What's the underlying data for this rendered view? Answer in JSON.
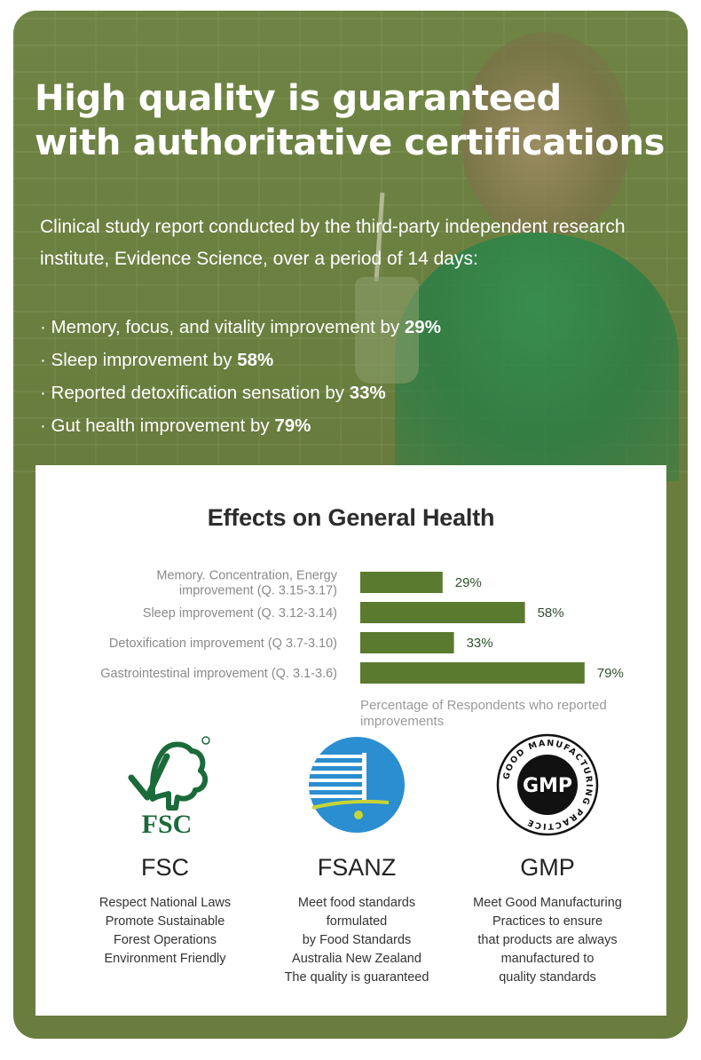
{
  "hero": {
    "title_line1": "High quality is guaranteed",
    "title_line2": "with authoritative certifications",
    "intro": "Clinical study report conducted by the third-party independent research institute, Evidence Science, over a period of 14 days:",
    "bullets": [
      {
        "text": "· Memory, focus, and vitality improvement by ",
        "value": "29%"
      },
      {
        "text": "· Sleep improvement by ",
        "value": "58%"
      },
      {
        "text": "· Reported detoxification sensation by ",
        "value": "33%"
      },
      {
        "text": "· Gut health improvement by ",
        "value": "79%"
      }
    ]
  },
  "chart_data": {
    "type": "bar",
    "orientation": "horizontal",
    "title": "Effects on General Health",
    "categories": [
      "Memory. Concentration, Energy improvement (Q. 3.15-3.17)",
      "Sleep improvement (Q. 3.12-3.14)",
      "Detoxification improvement (Q 3.7-3.10)",
      "Gastrointestinal improvement (Q. 3.1-3.6)"
    ],
    "category_lines": [
      [
        "Memory. Concentration, Energy",
        "improvement (Q. 3.15-3.17)"
      ],
      [
        "Sleep improvement (Q. 3.12-3.14)"
      ],
      [
        "Detoxification improvement (Q 3.7-3.10)"
      ],
      [
        "Gastrointestinal improvement (Q. 3.1-3.6)"
      ]
    ],
    "values": [
      29,
      58,
      33,
      79
    ],
    "value_labels": [
      "29%",
      "58%",
      "33%",
      "79%"
    ],
    "xlim": [
      0,
      100
    ],
    "xlabel": "Percentage of Respondents who reported improvements",
    "grid": false,
    "bar_color": "#5a7a2f",
    "label_color": "#2f4f2f"
  },
  "certifications": [
    {
      "name": "FSC",
      "logo": "fsc-tree-logo",
      "logo_text": "FSC",
      "description": "Respect National Laws\nPromote Sustainable\nForest Operations\nEnvironment Friendly"
    },
    {
      "name": "FSANZ",
      "logo": "fsanz-striped-circle-logo",
      "description": "Meet food standards\nformulated\nby Food Standards\nAustralia New Zealand\nThe quality is guaranteed"
    },
    {
      "name": "GMP",
      "logo": "gmp-seal-logo",
      "logo_text": "GMP",
      "logo_ring_text": "GOOD MANUFACTURING PRACTICE",
      "description": "Meet Good Manufacturing\nPractices to ensure\nthat products are always\nmanufactured to\nquality standards"
    }
  ],
  "colors": {
    "card": "#6b7d3e",
    "bar": "#5a7a2f",
    "fsc_green": "#1b6a3a",
    "fsanz_blue": "#2b8ed0",
    "fsanz_yellow": "#c7d436"
  }
}
